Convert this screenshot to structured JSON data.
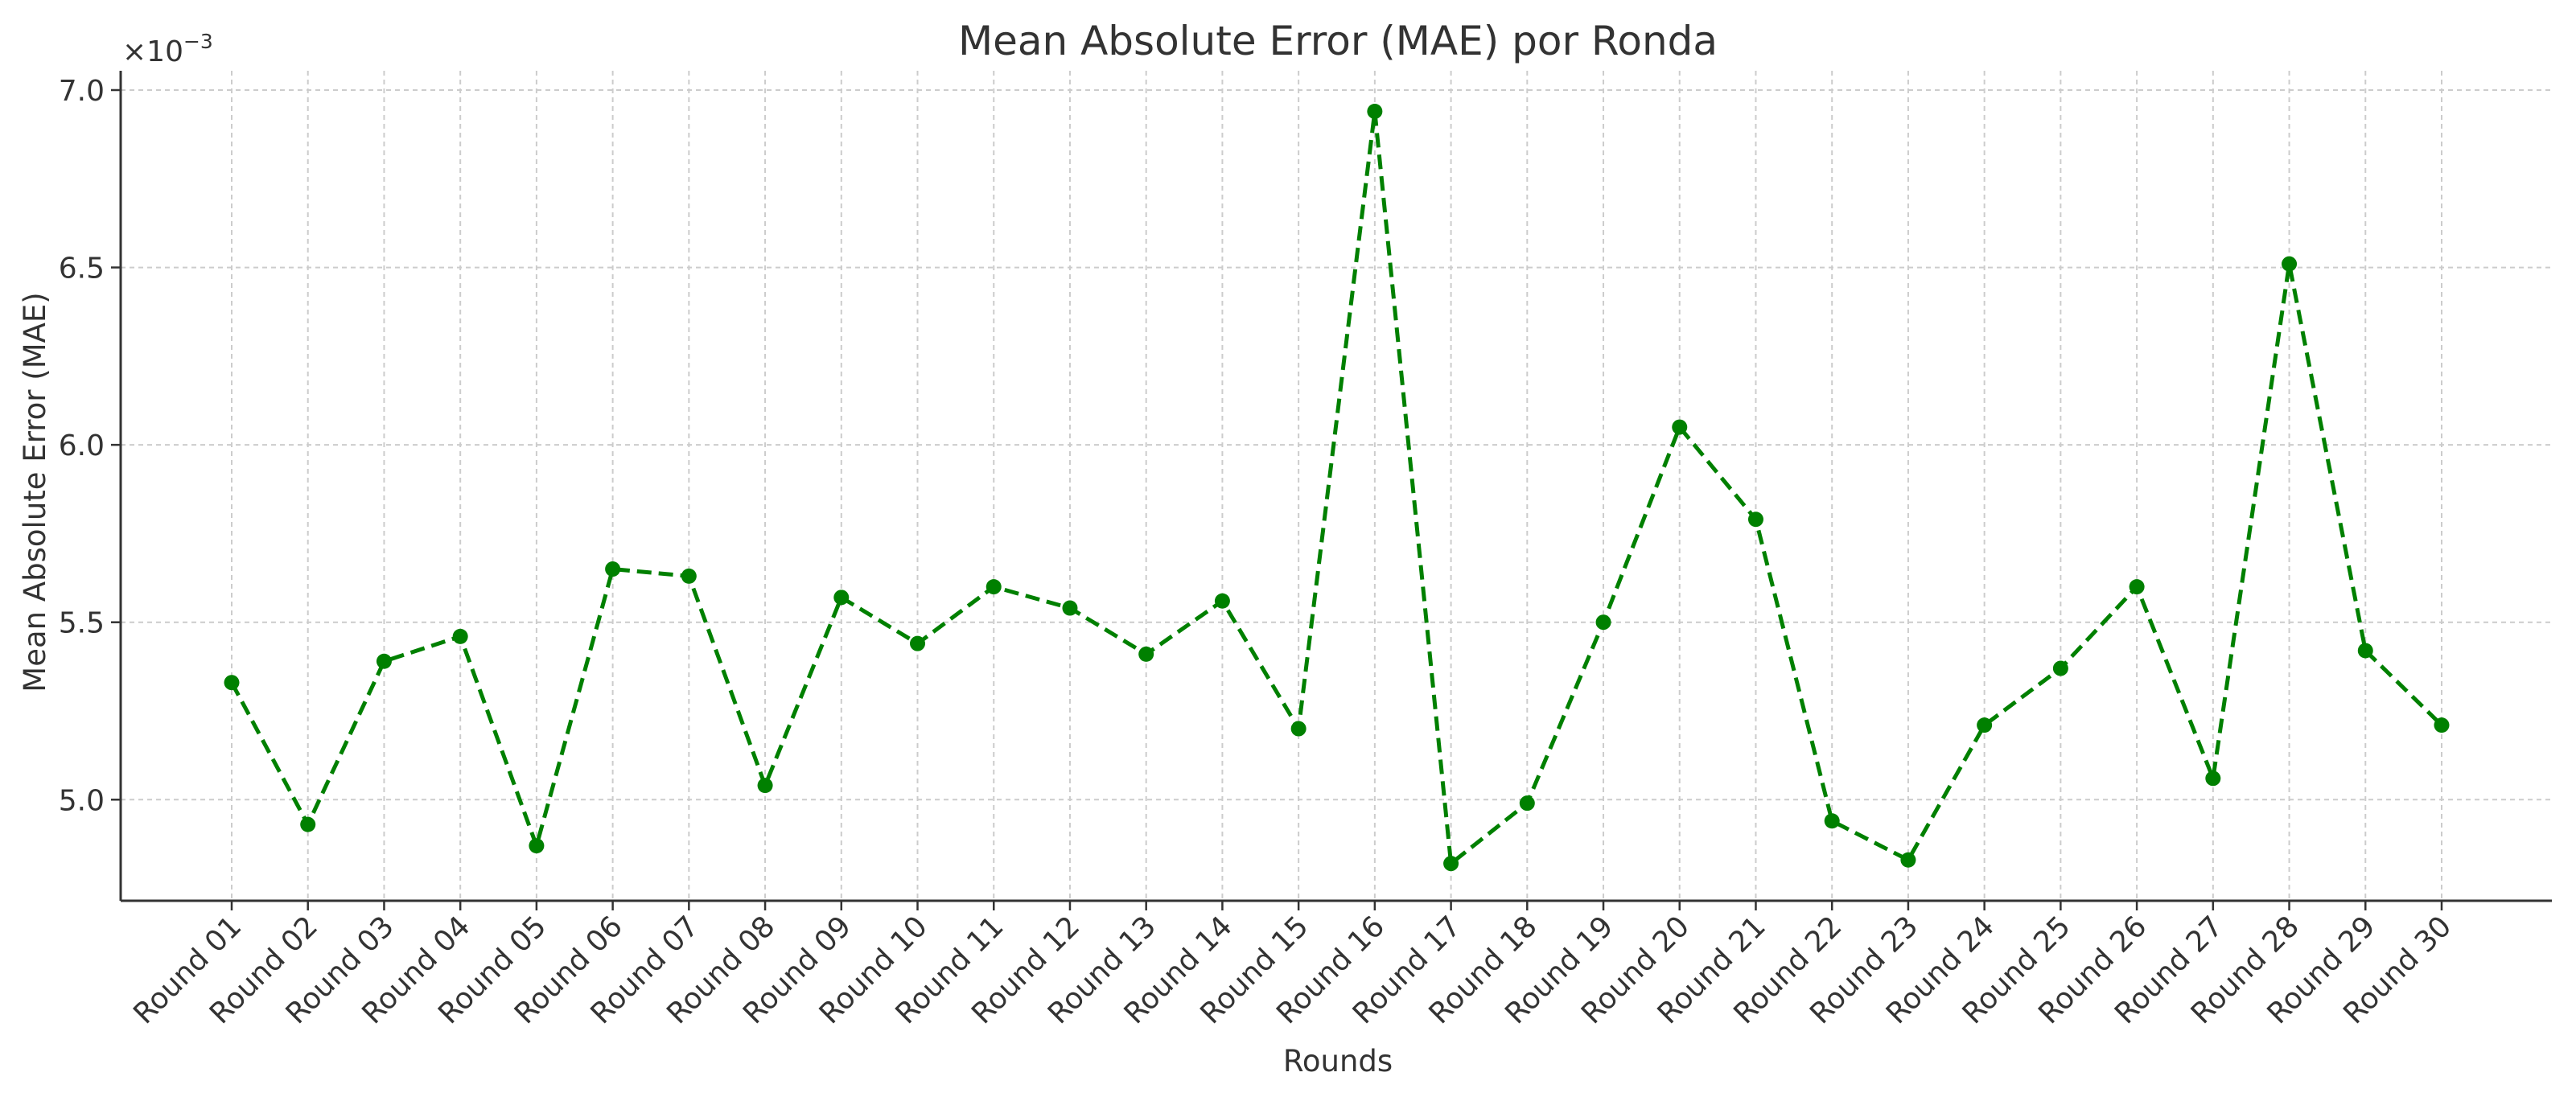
{
  "chart_data": {
    "type": "line",
    "title": "Mean Absolute Error (MAE) por Ronda",
    "xlabel": "Rounds",
    "ylabel": "Mean Absolute Error (MAE)",
    "y_offset_label": "×10",
    "y_offset_exponent": "−3",
    "categories": [
      "Round 01",
      "Round 02",
      "Round 03",
      "Round 04",
      "Round 05",
      "Round 06",
      "Round 07",
      "Round 08",
      "Round 09",
      "Round 10",
      "Round 11",
      "Round 12",
      "Round 13",
      "Round 14",
      "Round 15",
      "Round 16",
      "Round 17",
      "Round 18",
      "Round 19",
      "Round 20",
      "Round 21",
      "Round 22",
      "Round 23",
      "Round 24",
      "Round 25",
      "Round 26",
      "Round 27",
      "Round 28",
      "Round 29",
      "Round 30"
    ],
    "series": [
      {
        "values": [
          5.33,
          4.93,
          5.39,
          5.46,
          4.87,
          5.65,
          5.63,
          5.04,
          5.57,
          5.44,
          5.6,
          5.54,
          5.41,
          5.56,
          5.2,
          6.94,
          4.82,
          4.99,
          5.5,
          6.05,
          5.79,
          4.94,
          4.83,
          5.21,
          5.37,
          5.6,
          5.06,
          6.51,
          5.42,
          5.21
        ],
        "color": "#008000",
        "line_style": "dashed",
        "marker": "circle"
      }
    ],
    "y_scale_note": "values shown ×10^-3",
    "ylim": [
      4.715,
      7.0
    ],
    "yticks": [
      5.0,
      5.5,
      6.0,
      6.5,
      7.0
    ],
    "ytick_labels": [
      "5.0",
      "5.5",
      "6.0",
      "6.5",
      "7.0"
    ],
    "grid": true,
    "legend": "none"
  }
}
